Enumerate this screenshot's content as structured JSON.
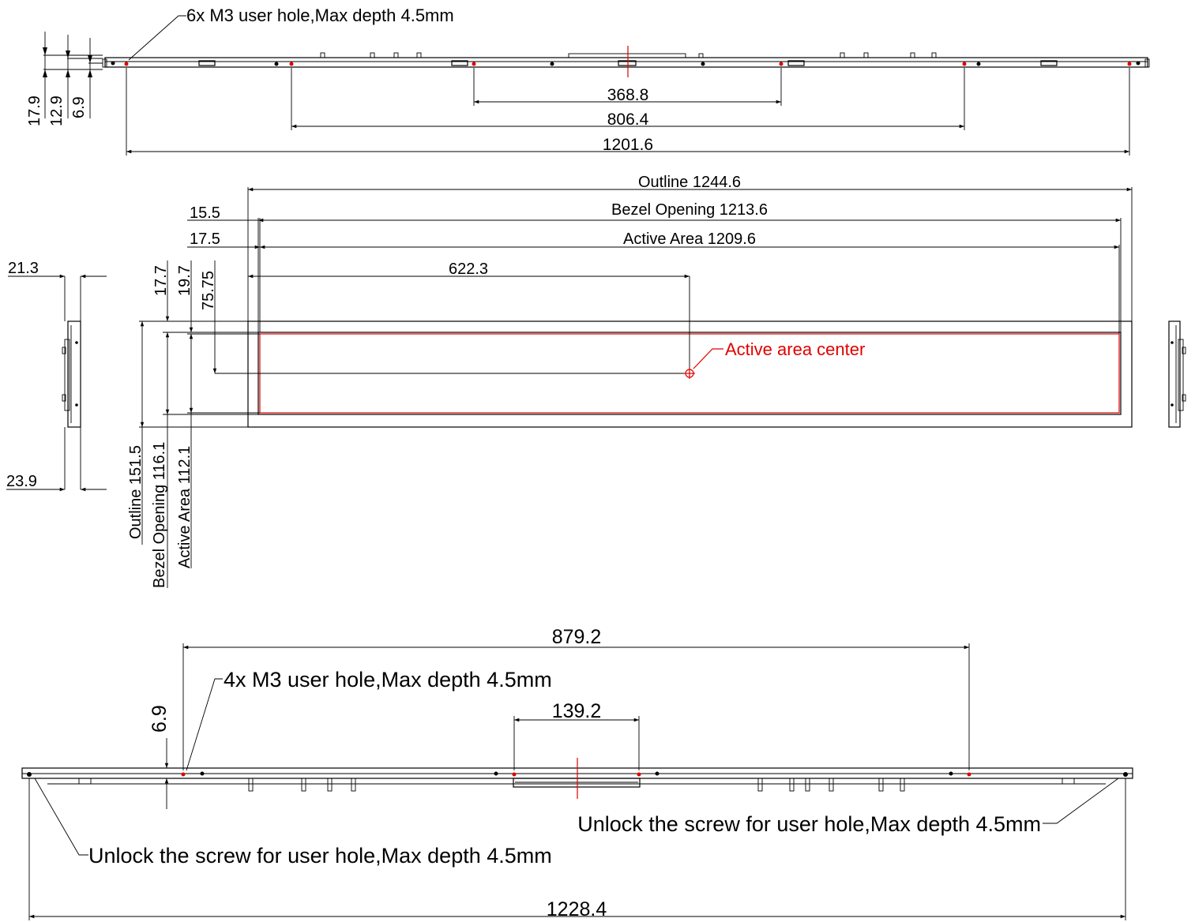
{
  "top_view": {
    "callout": "6x M3 user hole,Max depth 4.5mm",
    "dims": {
      "d1": "368.8",
      "d2": "806.4",
      "d3": "1201.6"
    },
    "left_dims": {
      "a": "17.9",
      "b": "12.9",
      "c": "6.9"
    }
  },
  "front_view": {
    "outline_width": "Outline 1244.6",
    "bezel_width": "Bezel Opening 1213.6",
    "active_width": "Active Area 1209.6",
    "offset_bezel": "15.5",
    "offset_active": "17.5",
    "center_x": "622.3",
    "side_depth_top": "21.3",
    "side_depth_bottom": "23.9",
    "vdim_a": "17.7",
    "vdim_b": "19.7",
    "vdim_c": "75.75",
    "outline_height": "Outline 151.5",
    "bezel_height": "Bezel Opening 116.1",
    "active_height": "Active Area 112.1",
    "center_label": "Active area center"
  },
  "bottom_view": {
    "dim_top": "879.2",
    "callout": "4x M3 user hole,Max depth 4.5mm",
    "dim_mid": "139.2",
    "dim_left": "6.9",
    "unlock_right": "Unlock the screw for user hole,Max depth 4.5mm",
    "unlock_left": "Unlock the screw for user hole,Max depth 4.5mm",
    "dim_bottom": "1228.4"
  },
  "colors": {
    "line": "#000000",
    "accent": "#e00000",
    "background": "#ffffff"
  }
}
